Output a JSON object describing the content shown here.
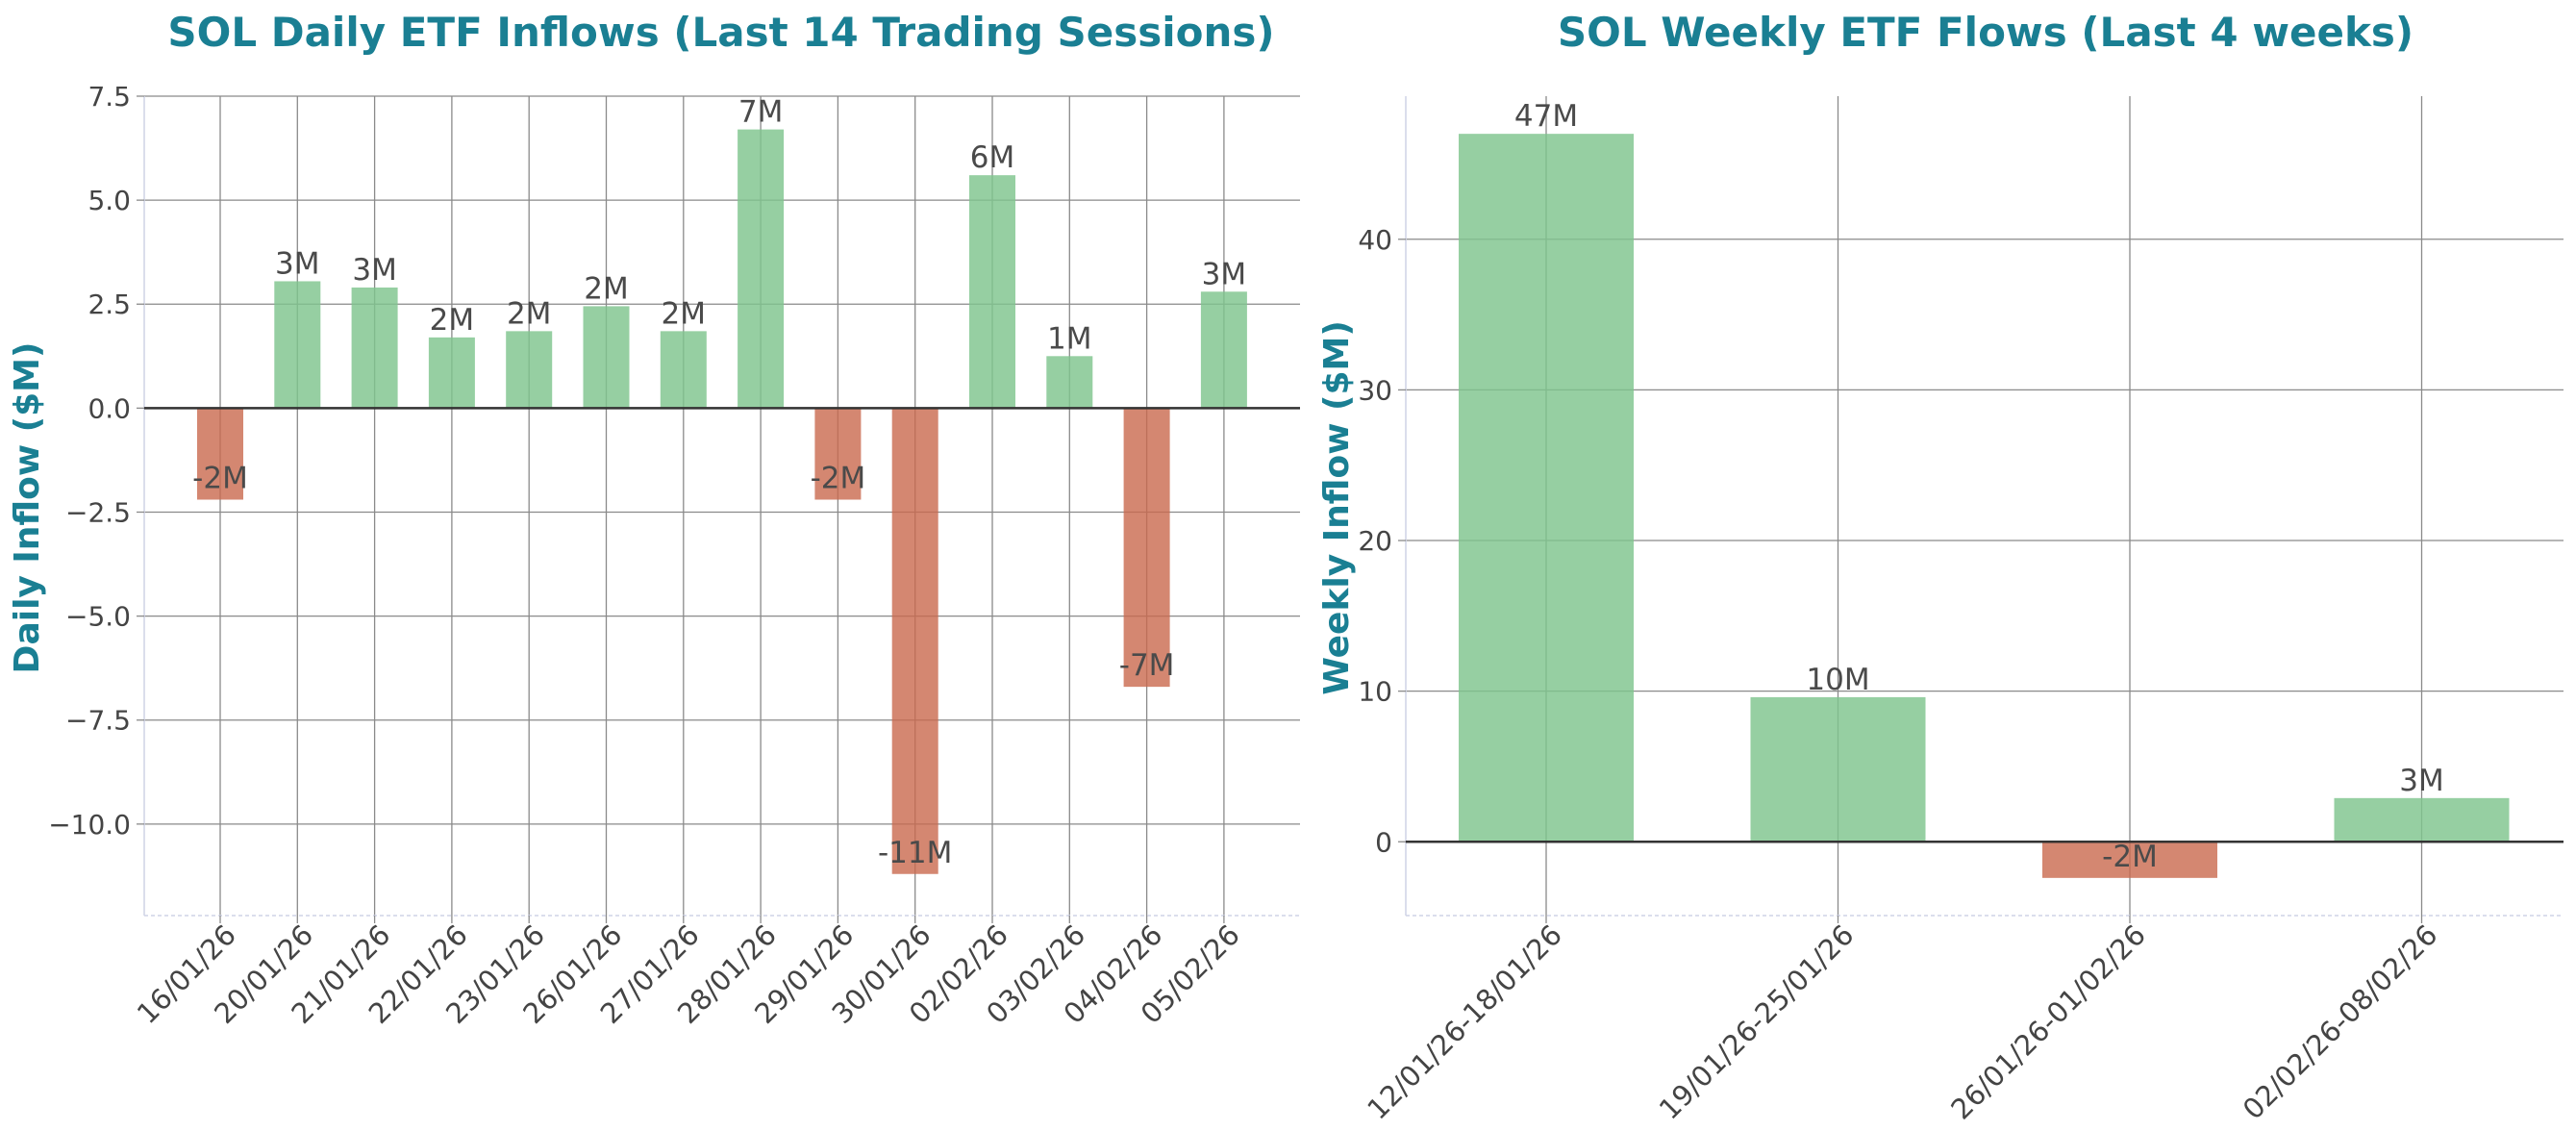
{
  "colors": {
    "title": "#1a7f93",
    "positive": "#7fc48d",
    "negative": "#c9694e",
    "grid": "#8a8a8a",
    "zero_line": "#333333",
    "text": "#444444"
  },
  "chart_data": [
    {
      "type": "bar",
      "title": "SOL Daily ETF Inflows (Last 14 Trading Sessions)",
      "xlabel": "",
      "ylabel": "Daily Inflow ($M)",
      "categories": [
        "16/01/26",
        "20/01/26",
        "21/01/26",
        "22/01/26",
        "23/01/26",
        "26/01/26",
        "27/01/26",
        "28/01/26",
        "29/01/26",
        "30/01/26",
        "02/02/26",
        "03/02/26",
        "04/02/26",
        "05/02/26"
      ],
      "values": [
        -2.2,
        3.05,
        2.9,
        1.7,
        1.85,
        2.45,
        1.85,
        6.7,
        -2.2,
        -11.2,
        5.6,
        1.25,
        -6.7,
        2.8
      ],
      "data_labels": [
        "-2M",
        "3M",
        "3M",
        "2M",
        "2M",
        "2M",
        "2M",
        "7M",
        "-2M",
        "-11M",
        "6M",
        "1M",
        "-7M",
        "3M"
      ],
      "ylim": [
        -12.2,
        7.5
      ],
      "yticks": [
        7.5,
        5.0,
        2.5,
        0.0,
        -2.5,
        -5.0,
        -7.5,
        -10.0
      ],
      "ytick_labels": [
        "7.5",
        "5.0",
        "2.5",
        "0.0",
        "−2.5",
        "−5.0",
        "−7.5",
        "−10.0"
      ],
      "grid": true
    },
    {
      "type": "bar",
      "title": "SOL Weekly ETF Flows (Last 4 weeks)",
      "xlabel": "",
      "ylabel": "Weekly Inflow ($M)",
      "categories": [
        "12/01/26-18/01/26",
        "19/01/26-25/01/26",
        "26/01/26-01/02/26",
        "02/02/26-08/02/26"
      ],
      "values": [
        47,
        9.6,
        -2.4,
        2.9
      ],
      "data_labels": [
        "47M",
        "10M",
        "-2M",
        "3M"
      ],
      "ylim": [
        -4.9,
        49.5
      ],
      "yticks": [
        40,
        30,
        20,
        10,
        0
      ],
      "ytick_labels": [
        "40",
        "30",
        "20",
        "10",
        "0"
      ],
      "grid": true
    }
  ]
}
